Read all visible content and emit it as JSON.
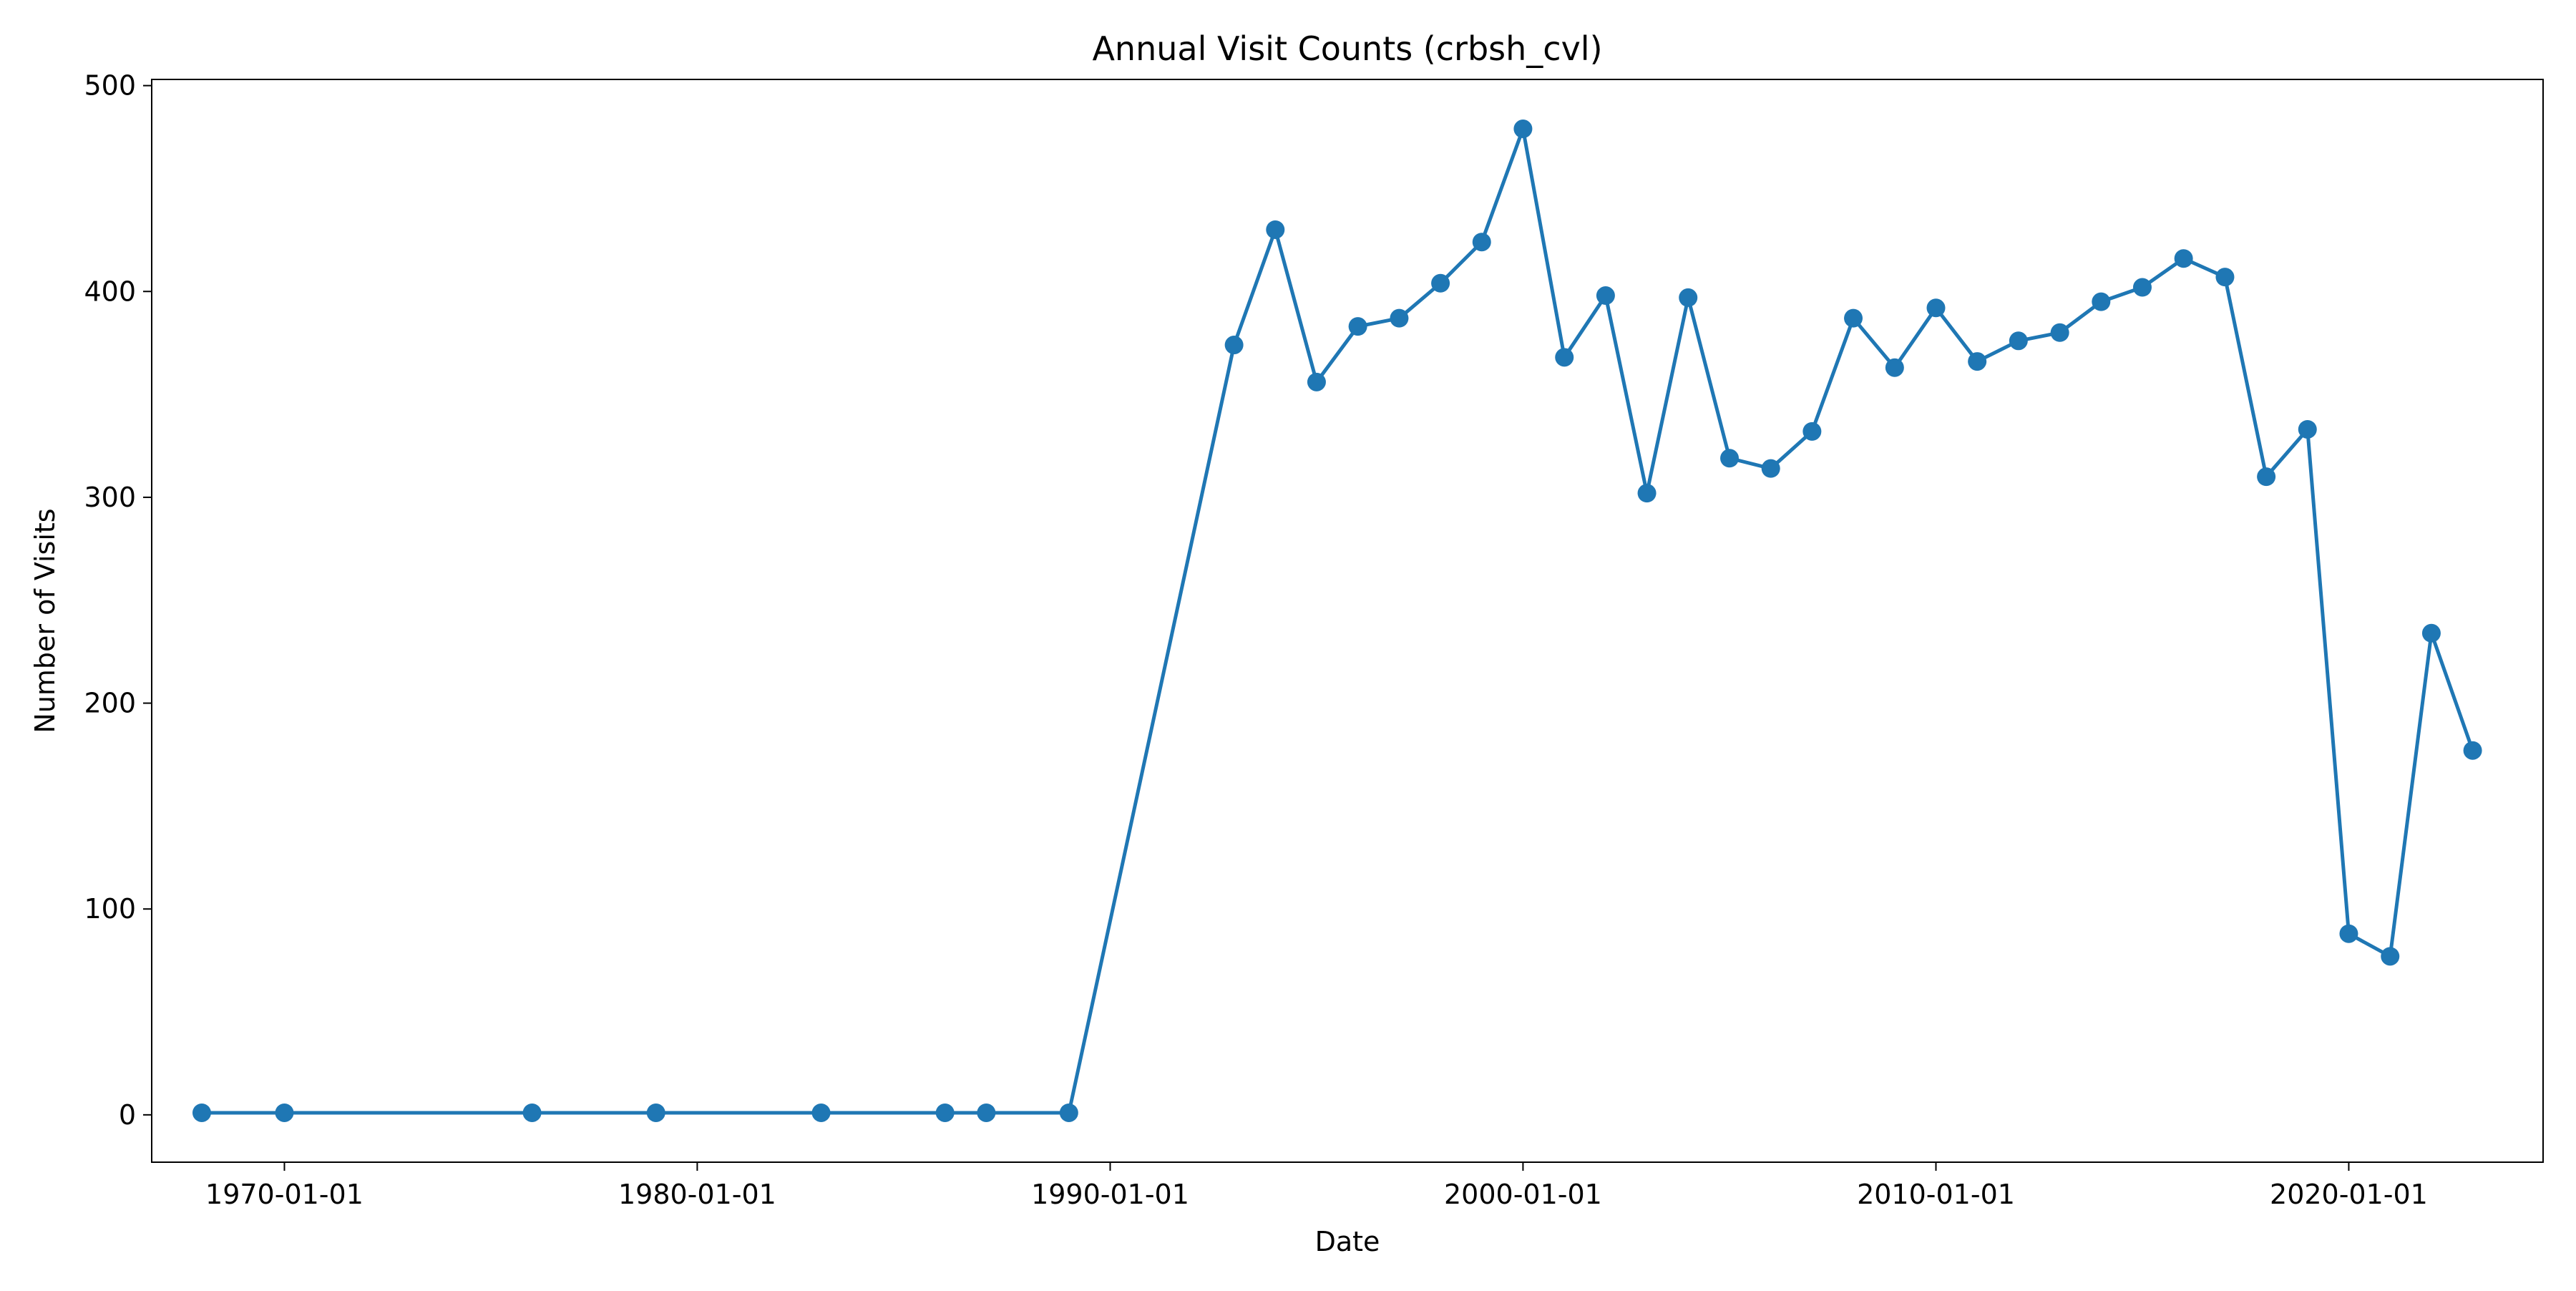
{
  "chart_data": {
    "type": "line",
    "title": "Annual Visit Counts (crbsh_cvl)",
    "xlabel": "Date",
    "ylabel": "Number of Visits",
    "x_axis_kind": "date",
    "xlim": [
      "1966-10-15",
      "2024-09-15"
    ],
    "ylim": [
      -23,
      503
    ],
    "x_ticks": [
      "1970-01-01",
      "1980-01-01",
      "1990-01-01",
      "2000-01-01",
      "2010-01-01",
      "2020-01-01"
    ],
    "y_ticks": [
      0,
      100,
      200,
      300,
      400,
      500
    ],
    "grid": false,
    "legend": "none",
    "marker": "circle",
    "color": "#1f77b4",
    "series": [
      {
        "x": [
          "1968-01-01",
          "1970-01-01",
          "1976-01-01",
          "1979-01-01",
          "1983-01-01",
          "1986-01-01",
          "1987-01-01",
          "1989-01-01",
          "1993-01-01",
          "1994-01-01",
          "1995-01-01",
          "1996-01-01",
          "1997-01-01",
          "1998-01-01",
          "1999-01-01",
          "2000-01-01",
          "2001-01-01",
          "2002-01-01",
          "2003-01-01",
          "2004-01-01",
          "2005-01-01",
          "2006-01-01",
          "2007-01-01",
          "2008-01-01",
          "2009-01-01",
          "2010-01-01",
          "2011-01-01",
          "2012-01-01",
          "2013-01-01",
          "2014-01-01",
          "2015-01-01",
          "2016-01-01",
          "2017-01-01",
          "2018-01-01",
          "2019-01-01",
          "2020-01-01",
          "2021-01-01",
          "2022-01-01",
          "2023-01-01"
        ],
        "y": [
          1,
          1,
          1,
          1,
          1,
          1,
          1,
          1,
          374,
          430,
          356,
          383,
          387,
          404,
          424,
          479,
          368,
          398,
          302,
          397,
          319,
          314,
          332,
          387,
          363,
          392,
          366,
          376,
          380,
          395,
          402,
          416,
          407,
          310,
          333,
          88,
          77,
          234,
          177
        ]
      }
    ]
  }
}
